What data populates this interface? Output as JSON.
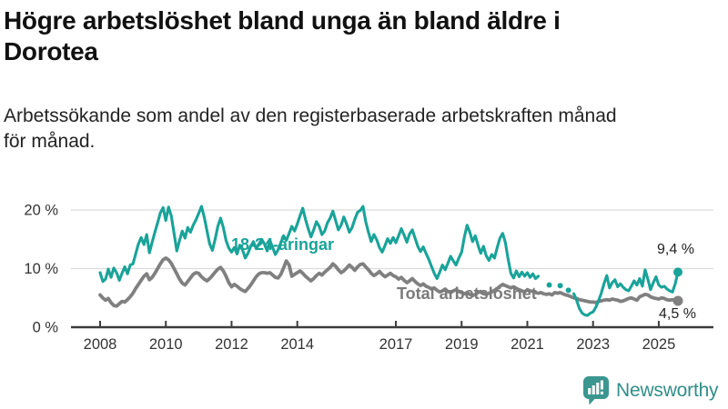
{
  "header": {
    "title": "Högre arbetslöshet bland unga än bland äldre i Dorotea",
    "title_lines": [
      "Högre arbetslöshet bland unga än bland äldre i",
      "Dorotea"
    ],
    "subtitle": "Arbetssökande som andel av den registerbaserade arbetskraften månad för månad.",
    "subtitle_lines": [
      "Arbetssökande som andel av den registerbaserade arbetskraften månad",
      "för månad."
    ]
  },
  "colors": {
    "youth_line": "#19a399",
    "total_line": "#808080",
    "total_label": "#7a7a7a",
    "grid": "#dcdcdc",
    "axis": "#3d3d3d",
    "tick_text": "#333333",
    "end_value_text": "#222222",
    "logo_teal": "#3a968f",
    "wordmark": "#2f8f88"
  },
  "chart_data": {
    "type": "line",
    "unit": "%",
    "frequency": "monthly",
    "x_start": "2008",
    "x_end": "2025",
    "x_tick_years": [
      2008,
      2010,
      2012,
      2014,
      2017,
      2019,
      2021,
      2023,
      2025
    ],
    "x_tick_labels": [
      "2008",
      "2010",
      "2012",
      "2014",
      "2017",
      "2019",
      "2021",
      "2023",
      "2025"
    ],
    "y_ticks": [
      {
        "value": 0,
        "label": "0 %"
      },
      {
        "value": 10,
        "label": "10 %"
      },
      {
        "value": 20,
        "label": "20 %"
      }
    ],
    "ylim": [
      0,
      22
    ],
    "grid": true,
    "series": [
      {
        "name": "18-24-åringar",
        "color_key": "youth_line",
        "end_label": "9,4 %",
        "values": [
          9.3,
          7.8,
          8.2,
          9.9,
          8.5,
          10.1,
          9.3,
          8.0,
          9.2,
          10.3,
          9.1,
          10.6,
          10.8,
          12.5,
          14.2,
          15.3,
          14.1,
          15.8,
          12.7,
          14.5,
          16.2,
          17.8,
          19.5,
          20.4,
          18.2,
          20.5,
          19.0,
          16.0,
          13.0,
          14.8,
          16.4,
          15.2,
          17.0,
          16.2,
          17.4,
          18.3,
          19.4,
          20.6,
          18.8,
          16.5,
          14.2,
          13.1,
          15.0,
          17.2,
          18.6,
          17.0,
          14.8,
          13.5,
          12.8,
          13.6,
          12.5,
          14.0,
          13.2,
          11.8,
          12.6,
          13.8,
          14.6,
          13.4,
          14.2,
          15.0,
          14.2,
          13.0,
          14.8,
          13.6,
          12.4,
          13.2,
          14.4,
          15.6,
          14.8,
          16.0,
          17.2,
          16.4,
          17.6,
          19.0,
          20.3,
          18.4,
          16.8,
          15.4,
          16.6,
          18.0,
          17.2,
          15.8,
          16.4,
          17.8,
          18.6,
          19.8,
          18.2,
          16.6,
          17.4,
          18.8,
          17.6,
          16.2,
          17.0,
          18.4,
          19.6,
          19.9,
          20.6,
          18.0,
          16.2,
          14.6,
          15.8,
          14.9,
          13.6,
          12.8,
          13.9,
          15.1,
          14.3,
          15.3,
          14.4,
          15.6,
          16.8,
          15.7,
          14.5,
          15.9,
          16.6,
          15.2,
          13.8,
          12.9,
          13.7,
          12.6,
          11.6,
          10.4,
          9.2,
          8.3,
          9.4,
          10.6,
          9.8,
          10.9,
          12.1,
          11.3,
          10.6,
          11.8,
          12.8,
          15.4,
          17.4,
          16.2,
          14.6,
          15.6,
          14.0,
          12.6,
          13.8,
          12.2,
          11.4,
          12.4,
          11.8,
          13.6,
          15.2,
          16.0,
          14.4,
          11.6,
          9.2,
          8.4,
          9.6,
          8.6,
          9.4,
          8.7,
          9.3,
          8.5,
          9.1,
          8.3,
          8.7,
          null,
          null,
          null,
          7.2,
          null,
          null,
          null,
          7.1,
          null,
          null,
          6.3,
          null,
          5.7,
          4.6,
          3.2,
          2.4,
          2.1,
          2.0,
          2.4,
          2.6,
          3.4,
          4.5,
          5.8,
          7.4,
          8.8,
          6.7,
          7.6,
          8.1,
          6.9,
          7.4,
          6.8,
          6.4,
          6.2,
          7.0,
          7.9,
          7.2,
          8.3,
          7.0,
          9.8,
          8.2,
          6.4,
          7.6,
          8.6,
          7.2,
          6.8,
          7.0,
          6.5,
          6.2,
          6.0,
          7.4,
          9.4
        ]
      },
      {
        "name": "Total arbetslöshet",
        "color_key": "total_line",
        "end_label": "4,5 %",
        "values": [
          5.5,
          5.0,
          4.6,
          4.9,
          4.2,
          3.7,
          3.6,
          4.0,
          4.4,
          4.3,
          4.7,
          5.2,
          5.8,
          6.6,
          7.3,
          8.0,
          8.7,
          9.1,
          8.1,
          8.5,
          9.2,
          10.0,
          10.8,
          11.5,
          11.8,
          11.5,
          10.9,
          10.0,
          9.1,
          8.2,
          7.5,
          7.2,
          7.8,
          8.4,
          9.0,
          9.3,
          9.2,
          8.6,
          8.2,
          7.9,
          8.3,
          8.8,
          9.4,
          9.9,
          10.2,
          9.6,
          8.7,
          7.6,
          6.9,
          7.3,
          7.0,
          6.6,
          6.3,
          6.1,
          6.6,
          7.2,
          7.9,
          8.6,
          9.1,
          9.3,
          9.3,
          9.2,
          9.3,
          8.9,
          8.5,
          8.4,
          9.0,
          10.1,
          11.3,
          10.6,
          8.7,
          9.0,
          9.3,
          9.6,
          9.2,
          8.7,
          8.3,
          7.9,
          8.3,
          8.8,
          9.2,
          8.9,
          9.4,
          9.8,
          10.2,
          10.8,
          10.4,
          9.8,
          9.3,
          9.6,
          10.1,
          10.6,
          10.2,
          9.7,
          10.3,
          10.7,
          10.8,
          10.3,
          9.8,
          9.2,
          8.8,
          9.1,
          9.5,
          9.0,
          8.6,
          8.9,
          9.2,
          8.8,
          8.6,
          8.2,
          8.5,
          8.0,
          7.6,
          7.9,
          8.3,
          7.8,
          7.4,
          7.1,
          7.4,
          7.0,
          6.8,
          6.5,
          6.7,
          6.3,
          6.0,
          6.2,
          6.5,
          6.1,
          5.9,
          6.2,
          6.4,
          6.1,
          5.9,
          5.7,
          5.9,
          5.6,
          5.4,
          5.6,
          5.9,
          6.1,
          5.8,
          5.6,
          5.8,
          6.0,
          6.3,
          6.6,
          7.0,
          7.3,
          7.1,
          6.9,
          6.7,
          6.9,
          6.6,
          6.4,
          6.2,
          6.0,
          6.4,
          6.2,
          6.1,
          5.9,
          5.8,
          5.9,
          5.7,
          5.6,
          5.7,
          5.5,
          5.9,
          5.8,
          5.9,
          5.7,
          5.5,
          5.4,
          5.2,
          5.0,
          4.9,
          4.7,
          4.6,
          4.5,
          4.4,
          4.3,
          4.3,
          4.2,
          4.4,
          4.5,
          4.6,
          4.7,
          4.6,
          4.8,
          4.7,
          4.6,
          4.4,
          4.5,
          4.7,
          4.9,
          5.0,
          4.8,
          4.6,
          5.2,
          5.4,
          5.6,
          5.5,
          5.2,
          5.0,
          4.9,
          4.8,
          5.0,
          4.9,
          4.7,
          4.6,
          4.7,
          4.6,
          4.5
        ]
      }
    ],
    "annotations": {
      "young_label": "18-24-åringar",
      "total_label": "Total arbetslöshet",
      "young_end_value": "9,4 %",
      "total_end_value": "4,5 %"
    }
  },
  "footer": {
    "brand": "Newsworthy"
  }
}
